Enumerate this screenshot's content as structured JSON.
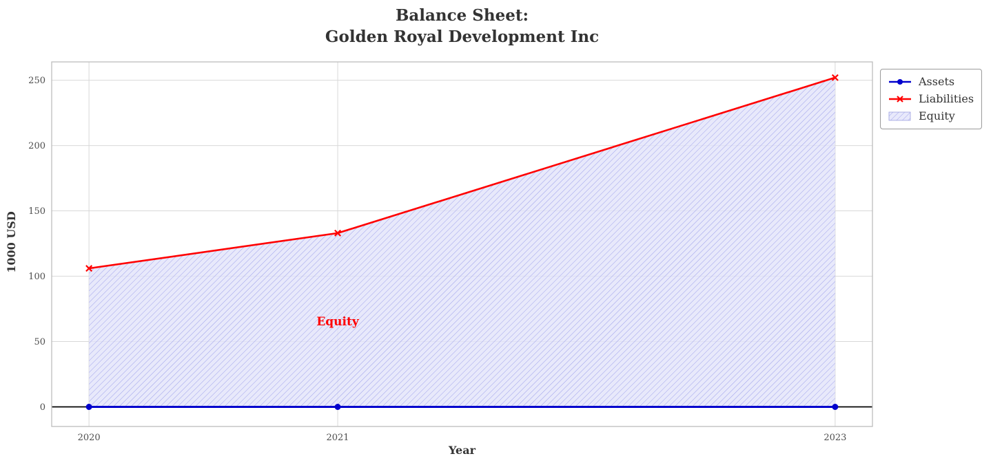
{
  "chart_data": {
    "type": "line",
    "title": "Balance Sheet:\nGolden Royal Development Inc",
    "title_lines": [
      "Balance Sheet:",
      "Golden Royal Development Inc"
    ],
    "xlabel": "Year",
    "ylabel": "1000 USD",
    "x": [
      2020,
      2021,
      2023
    ],
    "xticks": [
      "2020",
      "2021",
      "2023"
    ],
    "yticks": [
      0,
      50,
      100,
      150,
      200,
      250
    ],
    "xlim": [
      2019.85,
      2023.15
    ],
    "ylim": [
      -15,
      264
    ],
    "grid": true,
    "series": [
      {
        "name": "Assets",
        "values": [
          0,
          0,
          0
        ],
        "color": "#0000cd",
        "marker": "circle",
        "line_width": 3
      },
      {
        "name": "Liabilities",
        "values": [
          106,
          133,
          252
        ],
        "color": "#ff0000",
        "marker": "x",
        "line_width": 2.6
      }
    ],
    "area": {
      "name": "Equity",
      "from": 0,
      "to_series": "Liabilities",
      "fill": "#e2e3fa",
      "hatch": "//",
      "hatch_color": "#8f93e8"
    },
    "zero_line": {
      "color": "#000000"
    },
    "annotation": {
      "text": "Equity",
      "x": 2021,
      "y": 65,
      "color": "#ff0000"
    },
    "legend": {
      "position": "upper right outside",
      "items": [
        {
          "label": "Assets",
          "swatch": "line-circle",
          "color": "#0000cd"
        },
        {
          "label": "Liabilities",
          "swatch": "line-x",
          "color": "#ff0000"
        },
        {
          "label": "Equity",
          "swatch": "hatched-patch",
          "color": "#e2e3fa"
        }
      ]
    }
  }
}
